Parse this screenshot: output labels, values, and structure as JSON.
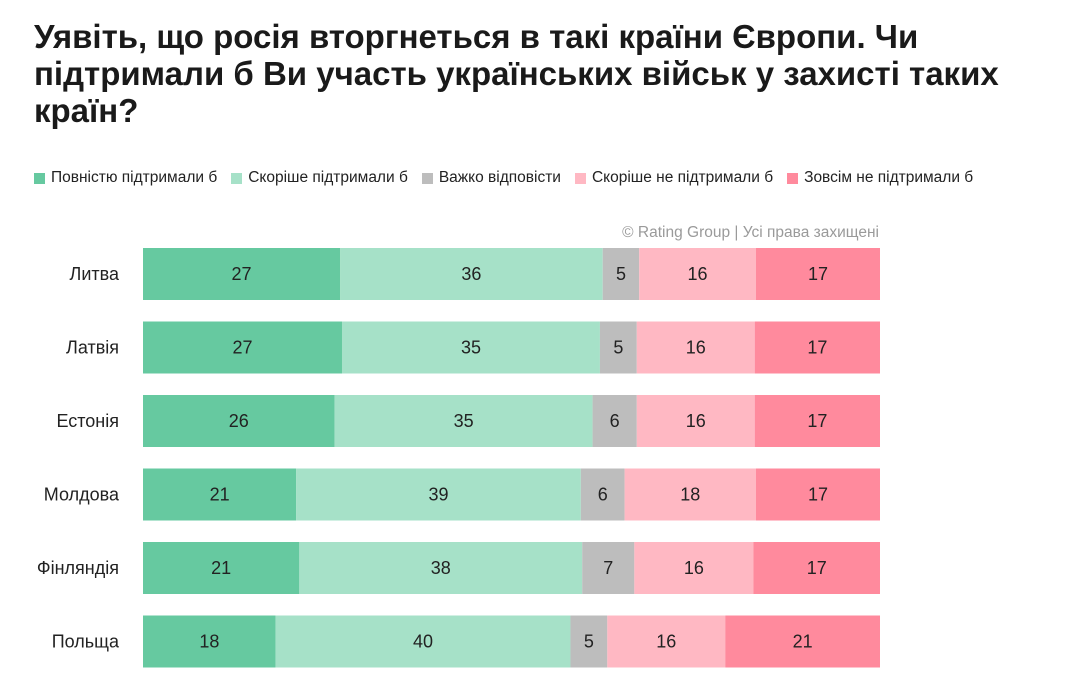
{
  "title": "Уявіть, що росія вторгнеться в такі країни Європи. Чи підтримали б Ви участь українських військ у захисті таких країн?",
  "copyright": "© Rating Group | Усі права захищені",
  "colors": {
    "fully_support": "#66c9a0",
    "rather_support": "#a6e1c8",
    "hard_to_say": "#bdbdbd",
    "rather_not": "#ffb8c3",
    "not_at_all": "#ff8a9d"
  },
  "chart_data": {
    "type": "bar",
    "orientation": "horizontal",
    "stacked": true,
    "percent": true,
    "categories": [
      "Литва",
      "Латвія",
      "Естонія",
      "Молдова",
      "Фінляндія",
      "Польща"
    ],
    "series": [
      {
        "name": "Повністю підтримали б",
        "color": "#66c9a0",
        "values": [
          27,
          27,
          26,
          21,
          21,
          18
        ]
      },
      {
        "name": "Скоріше підтримали б",
        "color": "#a6e1c8",
        "values": [
          36,
          35,
          35,
          39,
          38,
          40
        ]
      },
      {
        "name": "Важко відповісти",
        "color": "#bdbdbd",
        "values": [
          5,
          5,
          6,
          6,
          7,
          5
        ]
      },
      {
        "name": "Скоріше не підтримали б",
        "color": "#ffb8c3",
        "values": [
          16,
          16,
          16,
          18,
          16,
          16
        ]
      },
      {
        "name": "Зовсім не підтримали б",
        "color": "#ff8a9d",
        "values": [
          17,
          17,
          17,
          17,
          17,
          21
        ]
      }
    ],
    "legend_position": "top",
    "grid": false
  }
}
